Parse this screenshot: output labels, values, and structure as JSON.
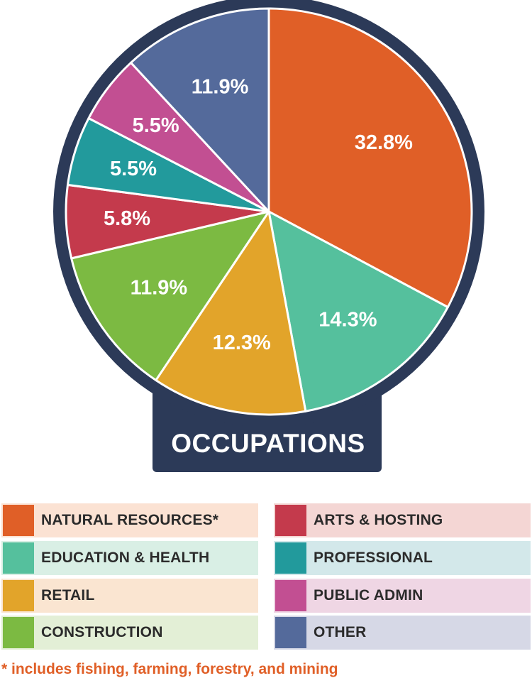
{
  "colors": {
    "frame": "#2c3a58",
    "label_text": "#ffffff",
    "footnote": "#e05f27"
  },
  "chart_data": {
    "type": "pie",
    "title": "OCCUPATIONS",
    "slices": [
      {
        "label": "NATURAL RESOURCES*",
        "value": 32.8,
        "display": "32.8%",
        "color": "#e05f27",
        "legend_bg": "#fbe2d3"
      },
      {
        "label": "EDUCATION & HEALTH",
        "value": 14.3,
        "display": "14.3%",
        "color": "#55c09d",
        "legend_bg": "#d9efe5"
      },
      {
        "label": "RETAIL",
        "value": 12.3,
        "display": "12.3%",
        "color": "#e2a42a",
        "legend_bg": "#fae5d1"
      },
      {
        "label": "CONSTRUCTION",
        "value": 11.9,
        "display": "11.9%",
        "color": "#7cba42",
        "legend_bg": "#e3efd6"
      },
      {
        "label": "ARTS & HOSTING",
        "value": 5.8,
        "display": "5.8%",
        "color": "#c43a4c",
        "legend_bg": "#f4d6d4"
      },
      {
        "label": "PROFESSIONAL",
        "value": 5.5,
        "display": "5.5%",
        "color": "#229a9c",
        "legend_bg": "#d3e8ea"
      },
      {
        "label": "PUBLIC ADMIN",
        "value": 5.5,
        "display": "5.5%",
        "color": "#c24f92",
        "legend_bg": "#efd6e4"
      },
      {
        "label": "OTHER",
        "value": 11.9,
        "display": "11.9%",
        "color": "#546a9b",
        "legend_bg": "#d6d8e6"
      }
    ],
    "legend_placement": "bottom",
    "footnote": "* includes fishing, farming, forestry, and mining"
  }
}
